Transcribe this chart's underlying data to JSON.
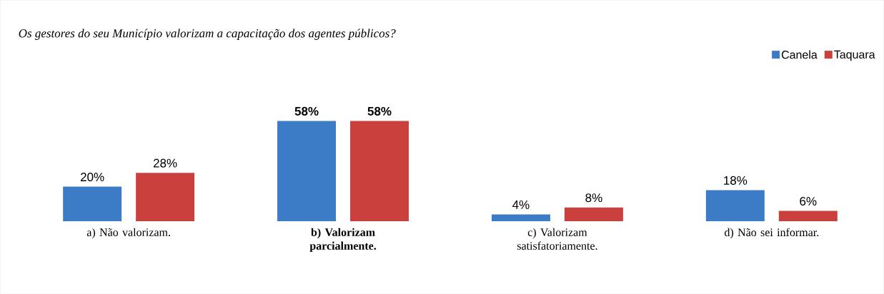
{
  "chart_data": {
    "type": "bar",
    "title": "*Os gestores do seu Município valorizam a capacitação dos agentes públicos?*",
    "categories": [
      "a) Não valorizam.",
      "**b) Valorizam parcialmente.**",
      "c) Valorizam satisfatoriamente.",
      "d) Não sei informar."
    ],
    "series": [
      {
        "name": "Canela",
        "color": "#3c7bc6",
        "values": [
          20,
          58,
          4,
          18
        ],
        "value_labels": [
          "20%",
          "**58%**",
          "4%",
          "18%"
        ]
      },
      {
        "name": "Taquara",
        "color": "#c9403c",
        "values": [
          28,
          58,
          8,
          6
        ],
        "value_labels": [
          "28%",
          "**58%**",
          "8%",
          "6%"
        ]
      }
    ],
    "legend": "top right"
  }
}
